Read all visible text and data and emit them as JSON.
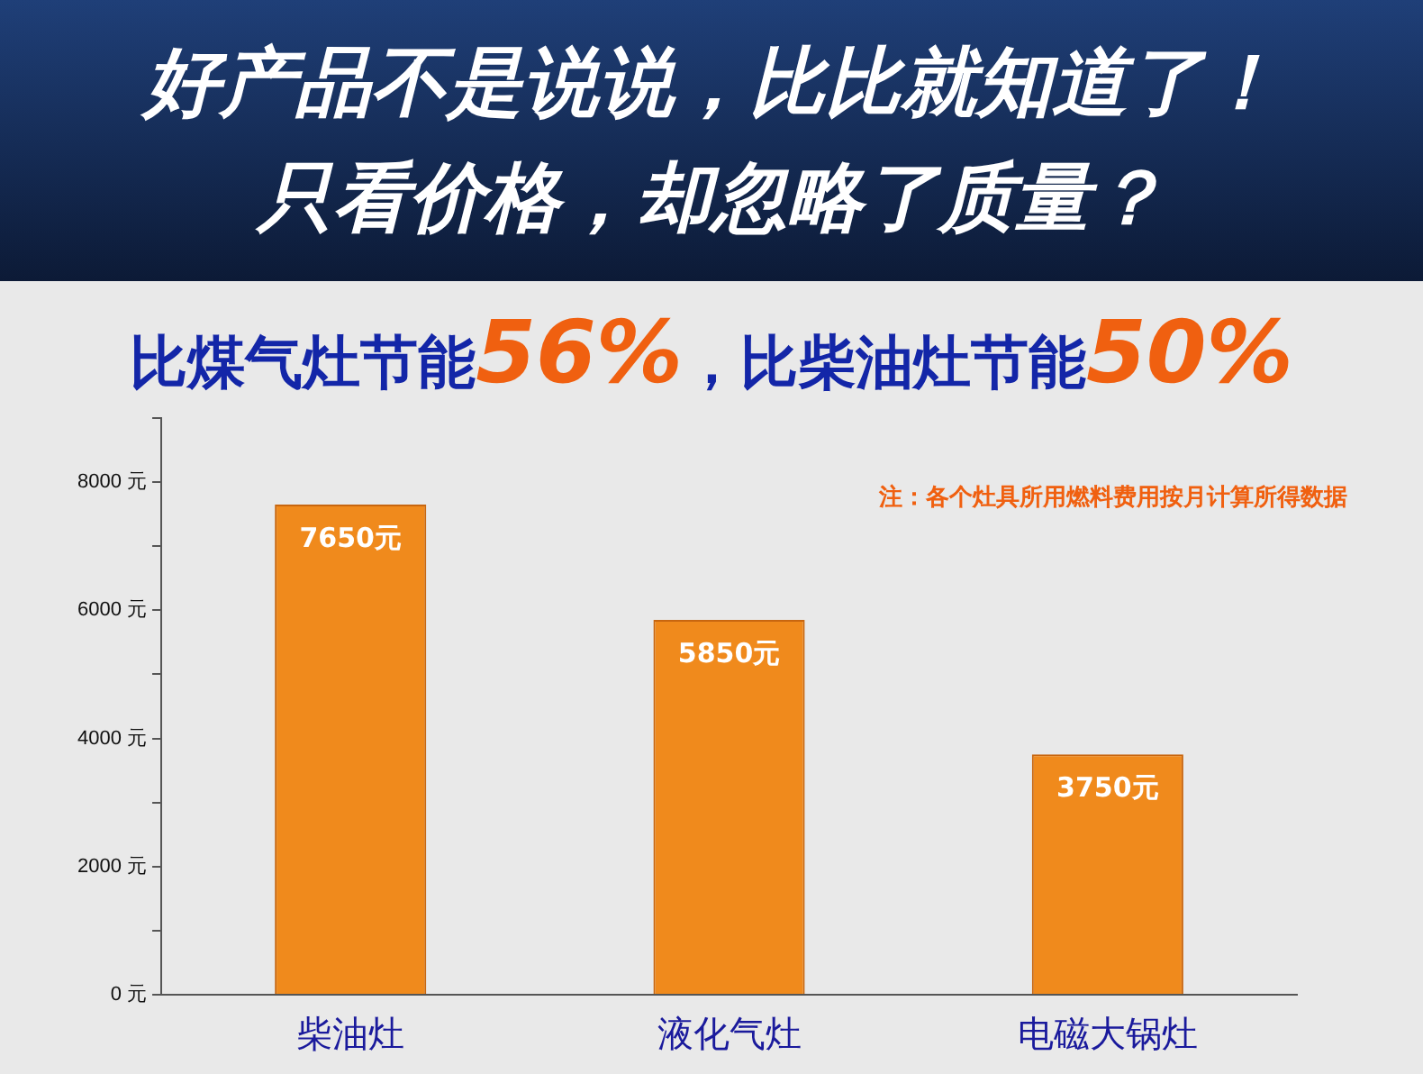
{
  "chart_data": {
    "type": "bar",
    "title": "好产品不是说说，比比就知道了！只看价格，却忽略了质量？",
    "subtitle": "比煤气灶节能56%，比柴油灶节能50%",
    "categories": [
      "柴油灶",
      "液化气灶",
      "电磁大锅灶"
    ],
    "values": [
      7650,
      5850,
      3750
    ],
    "value_labels": [
      "7650元",
      "5850元",
      "3750元"
    ],
    "color": "#f08a1c",
    "ylim": [
      0,
      9000
    ],
    "yticks": [
      {
        "value": 0,
        "label": "0 元"
      },
      {
        "value": 1000,
        "label": null
      },
      {
        "value": 2000,
        "label": "2000 元"
      },
      {
        "value": 3000,
        "label": null
      },
      {
        "value": 4000,
        "label": "4000 元"
      },
      {
        "value": 5000,
        "label": null
      },
      {
        "value": 6000,
        "label": "6000 元"
      },
      {
        "value": 7000,
        "label": null
      },
      {
        "value": 8000,
        "label": "8000 元"
      },
      {
        "value": 9000,
        "label": null
      }
    ],
    "annotations": [
      "注：各个灶具所用燃料费用按月计算所得数据"
    ],
    "grid": false,
    "legend": false
  }
}
